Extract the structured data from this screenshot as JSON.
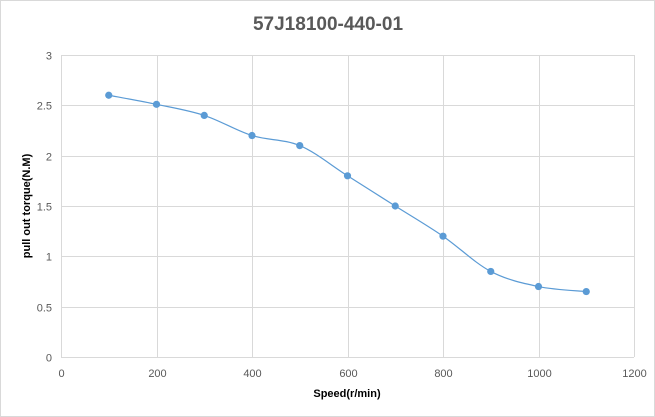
{
  "chart_data": {
    "type": "scatter",
    "title": "57J18100-440-01",
    "xlabel": "Speed(r/min)",
    "ylabel": "pull out torque(N.M)",
    "xlim": [
      0,
      1200
    ],
    "ylim": [
      0,
      3
    ],
    "x_ticks": [
      0,
      200,
      400,
      600,
      800,
      1000,
      1200
    ],
    "y_ticks": [
      0,
      0.5,
      1,
      1.5,
      2,
      2.5,
      3
    ],
    "x_tick_labels": [
      "0",
      "200",
      "400",
      "600",
      "800",
      "1000",
      "1200"
    ],
    "y_tick_labels": [
      "0",
      "0.5",
      "1",
      "1.5",
      "2",
      "2.5",
      "3"
    ],
    "grid": true,
    "smoothed_line": true,
    "color": "#5b9bd5",
    "series": [
      {
        "x": [
          100,
          200,
          300,
          400,
          500,
          600,
          700,
          800,
          900,
          1000,
          1100
        ],
        "y": [
          2.6,
          2.51,
          2.4,
          2.2,
          2.1,
          1.8,
          1.5,
          1.2,
          0.85,
          0.7,
          0.65
        ]
      }
    ]
  }
}
